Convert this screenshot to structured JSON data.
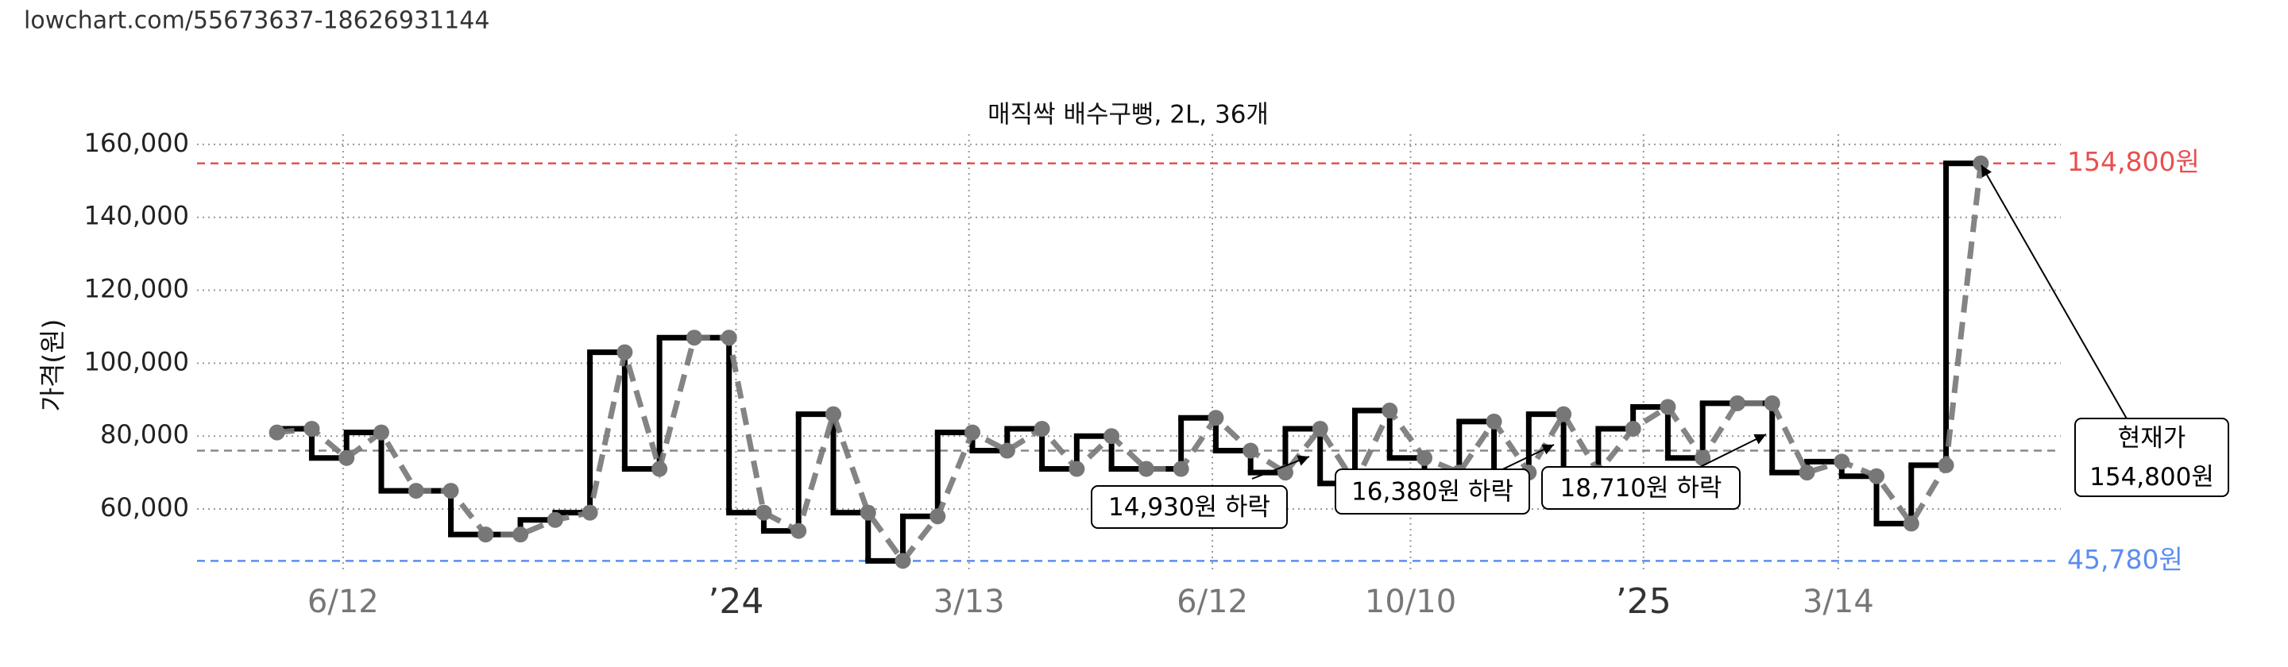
{
  "header": {
    "url": "lowchart.com/55673637-18626931144"
  },
  "chart_data": {
    "type": "line",
    "title": "매직싹 배수구뻥, 2L, 36개",
    "y_label": "가격(원)",
    "x": [
      0,
      1,
      2,
      3,
      4,
      5,
      6,
      7,
      8,
      9,
      10,
      11,
      12,
      13,
      14,
      15,
      16,
      17,
      18,
      19,
      20,
      21,
      22,
      23,
      24,
      25,
      26,
      27,
      28,
      29,
      30,
      31,
      32,
      33,
      34,
      35,
      36,
      37,
      38,
      39,
      40,
      41,
      42,
      43,
      44,
      45,
      46,
      47,
      48,
      49
    ],
    "xlim": [
      -2.3,
      51.3
    ],
    "xticks": [
      {
        "value": 1.9,
        "label": "6/12"
      },
      {
        "value": 13.2,
        "label": "’24"
      },
      {
        "value": 19.9,
        "label": "3/13"
      },
      {
        "value": 26.9,
        "label": "6/12"
      },
      {
        "value": 32.6,
        "label": "10/10"
      },
      {
        "value": 39.3,
        "label": "’25"
      },
      {
        "value": 44.9,
        "label": "3/14"
      }
    ],
    "ylim": [
      42800,
      162800
    ],
    "yticks": [
      {
        "value": 60000,
        "label": "60,000"
      },
      {
        "value": 80000,
        "label": "80,000"
      },
      {
        "value": 100000,
        "label": "100,000"
      },
      {
        "value": 120000,
        "label": "120,000"
      },
      {
        "value": 140000,
        "label": "140,000"
      },
      {
        "value": 160000,
        "label": "160,000"
      }
    ],
    "grid": true,
    "series": [
      {
        "color": "#777777",
        "step_color": "#000000",
        "values": [
          81000,
          82000,
          74000,
          81000,
          65000,
          65000,
          53000,
          53000,
          57000,
          59000,
          103000,
          71000,
          107000,
          107000,
          59000,
          54000,
          86000,
          59000,
          45780,
          58000,
          81000,
          76000,
          82000,
          71000,
          80000,
          71000,
          71000,
          85000,
          76000,
          70000,
          82000,
          67000,
          87000,
          74000,
          70000,
          84000,
          70000,
          86000,
          70000,
          82000,
          88000,
          74000,
          89000,
          89000,
          70000,
          73000,
          69000,
          56000,
          72000,
          154800
        ]
      }
    ],
    "reference_lines": [
      {
        "value": 154800,
        "label": "154,800원",
        "color": "#e8504f"
      },
      {
        "value": 45780,
        "label": "45,780원",
        "color": "#5b8def"
      },
      {
        "value": 76000,
        "color": "#888888"
      }
    ],
    "annotations": [
      {
        "lines": [
          "14,930원 하락"
        ]
      },
      {
        "lines": [
          "16,380원 하락"
        ]
      },
      {
        "lines": [
          "18,710원 하락"
        ]
      },
      {
        "lines": [
          "현재가",
          "154,800원"
        ]
      }
    ]
  }
}
